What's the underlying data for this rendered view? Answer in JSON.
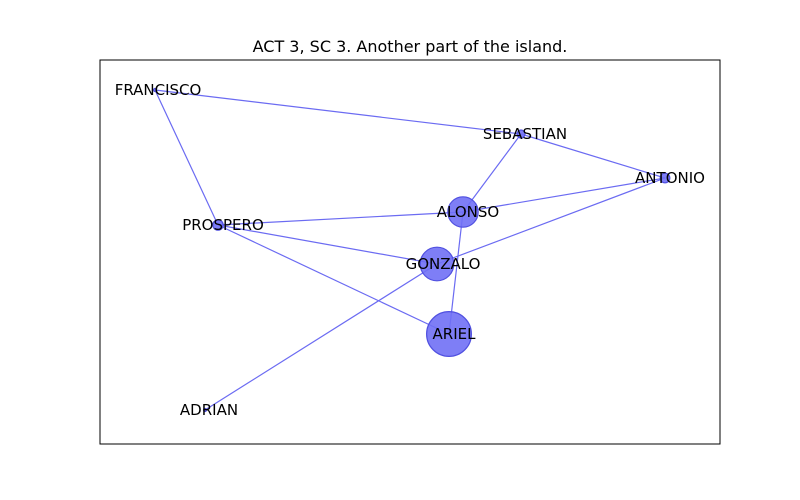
{
  "title": "ACT 3, SC 3. Another part of the island.",
  "colors": {
    "edge": "#6b6bf2",
    "node_fill": "#7070f5",
    "node_stroke": "#5050e0",
    "frame": "#000000"
  },
  "graph": {
    "nodes": [
      {
        "id": "FRANCISCO",
        "label": "FRANCISCO",
        "weight": 0
      },
      {
        "id": "SEBASTIAN",
        "label": "SEBASTIAN",
        "weight": 1
      },
      {
        "id": "ANTONIO",
        "label": "ANTONIO",
        "weight": 1.2
      },
      {
        "id": "ALONSO",
        "label": "ALONSO",
        "weight": 3.8
      },
      {
        "id": "PROSPERO",
        "label": "PROSPERO",
        "weight": 1.3
      },
      {
        "id": "GONZALO",
        "label": "GONZALO",
        "weight": 4.2
      },
      {
        "id": "ARIEL",
        "label": "ARIEL",
        "weight": 5.6
      },
      {
        "id": "ADRIAN",
        "label": "ADRIAN",
        "weight": 0
      }
    ],
    "edges": [
      {
        "source": "FRANCISCO",
        "target": "SEBASTIAN"
      },
      {
        "source": "FRANCISCO",
        "target": "PROSPERO"
      },
      {
        "source": "SEBASTIAN",
        "target": "ANTONIO"
      },
      {
        "source": "SEBASTIAN",
        "target": "ALONSO"
      },
      {
        "source": "ANTONIO",
        "target": "ALONSO"
      },
      {
        "source": "ANTONIO",
        "target": "GONZALO"
      },
      {
        "source": "PROSPERO",
        "target": "ALONSO"
      },
      {
        "source": "PROSPERO",
        "target": "GONZALO"
      },
      {
        "source": "PROSPERO",
        "target": "ARIEL"
      },
      {
        "source": "ALONSO",
        "target": "ARIEL"
      },
      {
        "source": "GONZALO",
        "target": "ADRIAN"
      }
    ]
  }
}
